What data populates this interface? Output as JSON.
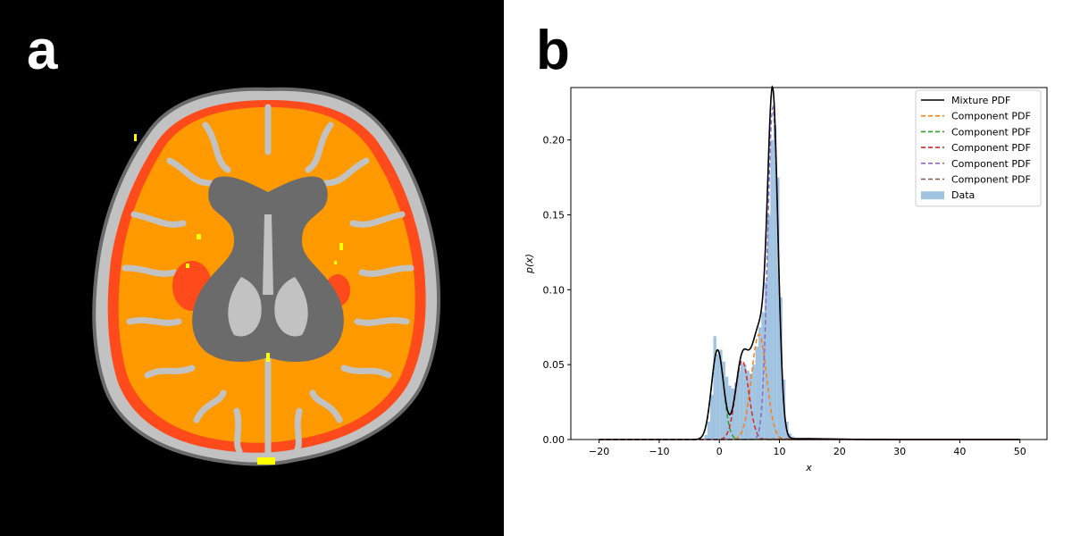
{
  "panels": {
    "a": {
      "letter": "a"
    },
    "b": {
      "letter": "b"
    }
  },
  "colors": {
    "wm": "#ff9900",
    "lesion": "#ff4a1c",
    "gm": "#c2c2c2",
    "csf": "#6b6b6b",
    "spot": "#ffff00",
    "mixture": "#000000",
    "components": [
      "#ff7f0e",
      "#2ca02c",
      "#d62728",
      "#9467bd",
      "#8c564b"
    ],
    "hist": "#9fc3e0"
  },
  "chart_data": {
    "type": "line",
    "xlabel": "x",
    "ylabel": "p(x)",
    "xlim": [
      -24.7,
      54.5
    ],
    "ylim": [
      0,
      0.235
    ],
    "xticks": [
      -20,
      -10,
      0,
      10,
      20,
      30,
      40,
      50
    ],
    "yticks": [
      0.0,
      0.05,
      0.1,
      0.15,
      0.2
    ],
    "xtick_labels": [
      "−20",
      "−10",
      "0",
      "10",
      "20",
      "30",
      "40",
      "50"
    ],
    "ytick_labels": [
      "0.00",
      "0.05",
      "0.10",
      "0.15",
      "0.20"
    ],
    "grid": false,
    "legend_position": "top-right",
    "legend": [
      {
        "label": "Mixture PDF",
        "style": "solid",
        "color": "#000000"
      },
      {
        "label": "Component PDF",
        "style": "dashed",
        "color": "#ff7f0e"
      },
      {
        "label": "Component PDF",
        "style": "dashed",
        "color": "#2ca02c"
      },
      {
        "label": "Component PDF",
        "style": "dashed",
        "color": "#d62728"
      },
      {
        "label": "Component PDF",
        "style": "dashed",
        "color": "#9467bd"
      },
      {
        "label": "Component PDF",
        "style": "dashed",
        "color": "#8c564b"
      },
      {
        "label": "Data",
        "style": "patch",
        "color": "#9fc3e0"
      }
    ],
    "components": [
      {
        "color": "#ff7f0e",
        "weight": 0.22,
        "mean": 6.6,
        "sd": 1.25
      },
      {
        "color": "#2ca02c",
        "weight": 0.15,
        "mean": -0.3,
        "sd": 1.0
      },
      {
        "color": "#d62728",
        "weight": 0.145,
        "mean": 3.8,
        "sd": 1.1
      },
      {
        "color": "#9467bd",
        "weight": 0.478,
        "mean": 8.9,
        "sd": 0.86
      },
      {
        "color": "#8c564b",
        "weight": 0.007,
        "mean": 14.0,
        "sd": 5.0
      }
    ],
    "histogram": {
      "bin_width": 0.5,
      "bins": [
        [
          -2.5,
          0.003
        ],
        [
          -2.0,
          0.012
        ],
        [
          -1.5,
          0.03
        ],
        [
          -1.0,
          0.069
        ],
        [
          -0.5,
          0.057
        ],
        [
          0.0,
          0.06
        ],
        [
          0.5,
          0.052
        ],
        [
          1.0,
          0.042
        ],
        [
          1.5,
          0.036
        ],
        [
          2.0,
          0.034
        ],
        [
          2.5,
          0.038
        ],
        [
          3.0,
          0.046
        ],
        [
          3.5,
          0.051
        ],
        [
          4.0,
          0.05
        ],
        [
          4.5,
          0.046
        ],
        [
          5.0,
          0.044
        ],
        [
          5.5,
          0.05
        ],
        [
          6.0,
          0.062
        ],
        [
          6.5,
          0.075
        ],
        [
          7.0,
          0.085
        ],
        [
          7.5,
          0.105
        ],
        [
          8.0,
          0.15
        ],
        [
          8.5,
          0.2
        ],
        [
          9.0,
          0.21
        ],
        [
          9.5,
          0.175
        ],
        [
          10.0,
          0.095
        ],
        [
          10.5,
          0.04
        ],
        [
          11.0,
          0.012
        ],
        [
          11.5,
          0.004
        ],
        [
          12.0,
          0.002
        ]
      ]
    }
  }
}
